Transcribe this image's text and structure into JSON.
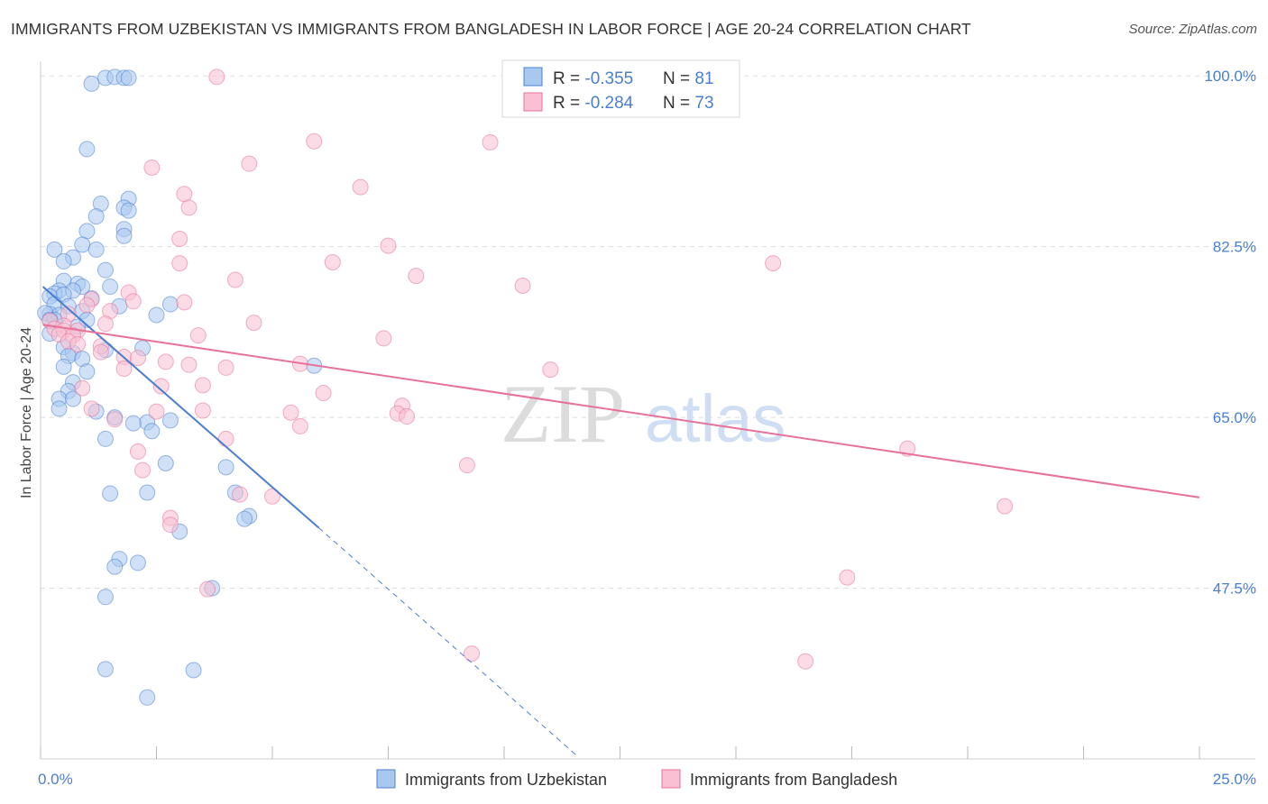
{
  "title": "IMMIGRANTS FROM UZBEKISTAN VS IMMIGRANTS FROM BANGLADESH IN LABOR FORCE | AGE 20-24 CORRELATION CHART",
  "source": "Source: ZipAtlas.com",
  "watermark": {
    "zip": "ZIP",
    "atlas": "atlas"
  },
  "stats": [
    {
      "r_label": "R = ",
      "r_value": "-0.355",
      "n_label": "N = ",
      "n_value": "81",
      "color": "#4a7fd0"
    },
    {
      "r_label": "R = ",
      "r_value": "-0.284",
      "n_label": "N = ",
      "n_value": "73",
      "color": "#e8719a"
    }
  ],
  "chart_data": {
    "type": "scatter",
    "title": "IMMIGRANTS FROM UZBEKISTAN VS IMMIGRANTS FROM BANGLADESH IN LABOR FORCE | AGE 20-24 CORRELATION CHART",
    "xlabel": "",
    "ylabel": "In Labor Force | Age 20-24",
    "xlim": [
      0,
      25
    ],
    "ylim": [
      30,
      101.5
    ],
    "x_tick_labels": [
      {
        "value": 0,
        "label": "0.0%"
      },
      {
        "value": 25,
        "label": "25.0%"
      }
    ],
    "y_tick_labels": [
      {
        "value": 100,
        "label": "100.0%"
      },
      {
        "value": 82.5,
        "label": "82.5%"
      },
      {
        "value": 65,
        "label": "65.0%"
      },
      {
        "value": 47.5,
        "label": "47.5%"
      }
    ],
    "grid": true,
    "legend_position": "bottom",
    "series": [
      {
        "name": "Immigrants from Uzbekistan",
        "color": "#4a7fd0",
        "fill": "#a9c8f0",
        "r": -0.355,
        "n": 81,
        "trend": {
          "x0": 0.05,
          "y0": 78.4,
          "x1": 6,
          "y1": 53.7,
          "dash_to_x": 11.6,
          "dash_to_y": 30.2
        },
        "points": [
          [
            1.1,
            99.2
          ],
          [
            1.4,
            99.8
          ],
          [
            1.6,
            99.9
          ],
          [
            1.8,
            99.8
          ],
          [
            1.9,
            99.8
          ],
          [
            1.0,
            92.5
          ],
          [
            1.3,
            86.9
          ],
          [
            1.9,
            87.4
          ],
          [
            1.8,
            86.5
          ],
          [
            1.9,
            86.2
          ],
          [
            1.2,
            85.6
          ],
          [
            1.8,
            84.3
          ],
          [
            1.0,
            84.1
          ],
          [
            1.8,
            83.6
          ],
          [
            0.9,
            82.7
          ],
          [
            0.3,
            82.2
          ],
          [
            1.2,
            82.2
          ],
          [
            0.7,
            81.4
          ],
          [
            0.5,
            81.0
          ],
          [
            1.4,
            80.1
          ],
          [
            0.5,
            79.0
          ],
          [
            0.8,
            78.7
          ],
          [
            0.9,
            78.4
          ],
          [
            1.5,
            78.4
          ],
          [
            0.4,
            78.0
          ],
          [
            0.7,
            78.0
          ],
          [
            0.3,
            77.7
          ],
          [
            0.2,
            77.4
          ],
          [
            0.5,
            77.6
          ],
          [
            1.1,
            77.2
          ],
          [
            0.3,
            76.6
          ],
          [
            0.6,
            76.4
          ],
          [
            1.7,
            76.4
          ],
          [
            2.8,
            76.6
          ],
          [
            0.9,
            75.9
          ],
          [
            2.5,
            75.5
          ],
          [
            0.2,
            75.6
          ],
          [
            0.4,
            75.5
          ],
          [
            0.1,
            75.7
          ],
          [
            0.3,
            75.0
          ],
          [
            1.0,
            75.0
          ],
          [
            0.8,
            74.3
          ],
          [
            0.2,
            73.6
          ],
          [
            0.5,
            72.2
          ],
          [
            0.7,
            71.6
          ],
          [
            1.4,
            71.9
          ],
          [
            2.2,
            72.1
          ],
          [
            0.6,
            71.3
          ],
          [
            0.9,
            71.0
          ],
          [
            0.5,
            70.2
          ],
          [
            1.0,
            69.7
          ],
          [
            5.9,
            70.3
          ],
          [
            0.7,
            68.6
          ],
          [
            0.6,
            67.7
          ],
          [
            0.4,
            66.9
          ],
          [
            0.7,
            66.9
          ],
          [
            0.4,
            65.9
          ],
          [
            1.2,
            65.6
          ],
          [
            2.8,
            64.7
          ],
          [
            1.6,
            65.0
          ],
          [
            2.3,
            64.5
          ],
          [
            2.0,
            64.4
          ],
          [
            2.4,
            63.6
          ],
          [
            1.4,
            62.8
          ],
          [
            2.7,
            60.3
          ],
          [
            4.0,
            59.9
          ],
          [
            1.5,
            57.2
          ],
          [
            2.3,
            57.3
          ],
          [
            4.2,
            57.3
          ],
          [
            4.5,
            54.9
          ],
          [
            4.4,
            54.6
          ],
          [
            3.0,
            53.3
          ],
          [
            1.7,
            50.5
          ],
          [
            2.1,
            50.1
          ],
          [
            1.6,
            49.7
          ],
          [
            3.7,
            47.5
          ],
          [
            1.4,
            46.6
          ],
          [
            1.4,
            39.2
          ],
          [
            3.3,
            39.1
          ],
          [
            2.3,
            36.3
          ],
          [
            0.2,
            75.0
          ]
        ]
      },
      {
        "name": "Immigrants from Bangladesh",
        "color": "#e8719a",
        "fill": "#f8c0d2",
        "r": -0.284,
        "n": 73,
        "trend": {
          "x0": 0.05,
          "y0": 74.5,
          "x1": 25,
          "y1": 56.8
        },
        "points": [
          [
            3.8,
            99.9
          ],
          [
            5.9,
            93.3
          ],
          [
            9.7,
            93.2
          ],
          [
            2.4,
            90.6
          ],
          [
            4.5,
            91.0
          ],
          [
            6.9,
            88.6
          ],
          [
            3.1,
            87.9
          ],
          [
            3.2,
            86.5
          ],
          [
            3.0,
            83.3
          ],
          [
            7.5,
            82.6
          ],
          [
            3.0,
            80.8
          ],
          [
            6.3,
            80.9
          ],
          [
            15.8,
            80.8
          ],
          [
            8.1,
            79.5
          ],
          [
            4.2,
            79.1
          ],
          [
            10.4,
            78.5
          ],
          [
            1.9,
            77.8
          ],
          [
            1.1,
            77.1
          ],
          [
            2.0,
            76.9
          ],
          [
            3.1,
            76.8
          ],
          [
            1.0,
            76.5
          ],
          [
            1.5,
            75.9
          ],
          [
            0.6,
            75.6
          ],
          [
            0.2,
            74.9
          ],
          [
            4.6,
            74.7
          ],
          [
            1.4,
            74.6
          ],
          [
            0.5,
            74.4
          ],
          [
            0.3,
            74.1
          ],
          [
            0.5,
            73.9
          ],
          [
            0.8,
            73.9
          ],
          [
            0.4,
            73.5
          ],
          [
            0.7,
            73.4
          ],
          [
            3.4,
            73.4
          ],
          [
            7.4,
            73.1
          ],
          [
            0.6,
            72.8
          ],
          [
            0.8,
            72.5
          ],
          [
            1.3,
            72.3
          ],
          [
            1.8,
            71.2
          ],
          [
            2.1,
            71.1
          ],
          [
            2.7,
            70.7
          ],
          [
            3.2,
            70.4
          ],
          [
            5.6,
            70.5
          ],
          [
            4.0,
            70.1
          ],
          [
            11.0,
            69.9
          ],
          [
            1.8,
            70.0
          ],
          [
            1.3,
            71.7
          ],
          [
            0.9,
            68.0
          ],
          [
            2.6,
            68.2
          ],
          [
            3.5,
            68.3
          ],
          [
            6.1,
            67.5
          ],
          [
            7.8,
            66.2
          ],
          [
            7.7,
            65.4
          ],
          [
            3.5,
            65.7
          ],
          [
            1.1,
            65.9
          ],
          [
            2.5,
            65.6
          ],
          [
            5.4,
            65.5
          ],
          [
            7.9,
            65.1
          ],
          [
            1.6,
            64.8
          ],
          [
            5.6,
            64.1
          ],
          [
            4.0,
            62.8
          ],
          [
            2.1,
            61.5
          ],
          [
            18.7,
            61.8
          ],
          [
            9.2,
            60.1
          ],
          [
            2.2,
            59.6
          ],
          [
            4.3,
            57.1
          ],
          [
            5.0,
            56.9
          ],
          [
            20.8,
            55.9
          ],
          [
            2.8,
            54.7
          ],
          [
            2.8,
            54.0
          ],
          [
            3.6,
            47.4
          ],
          [
            17.4,
            48.6
          ],
          [
            9.3,
            40.8
          ],
          [
            16.5,
            40.0
          ]
        ]
      }
    ]
  }
}
